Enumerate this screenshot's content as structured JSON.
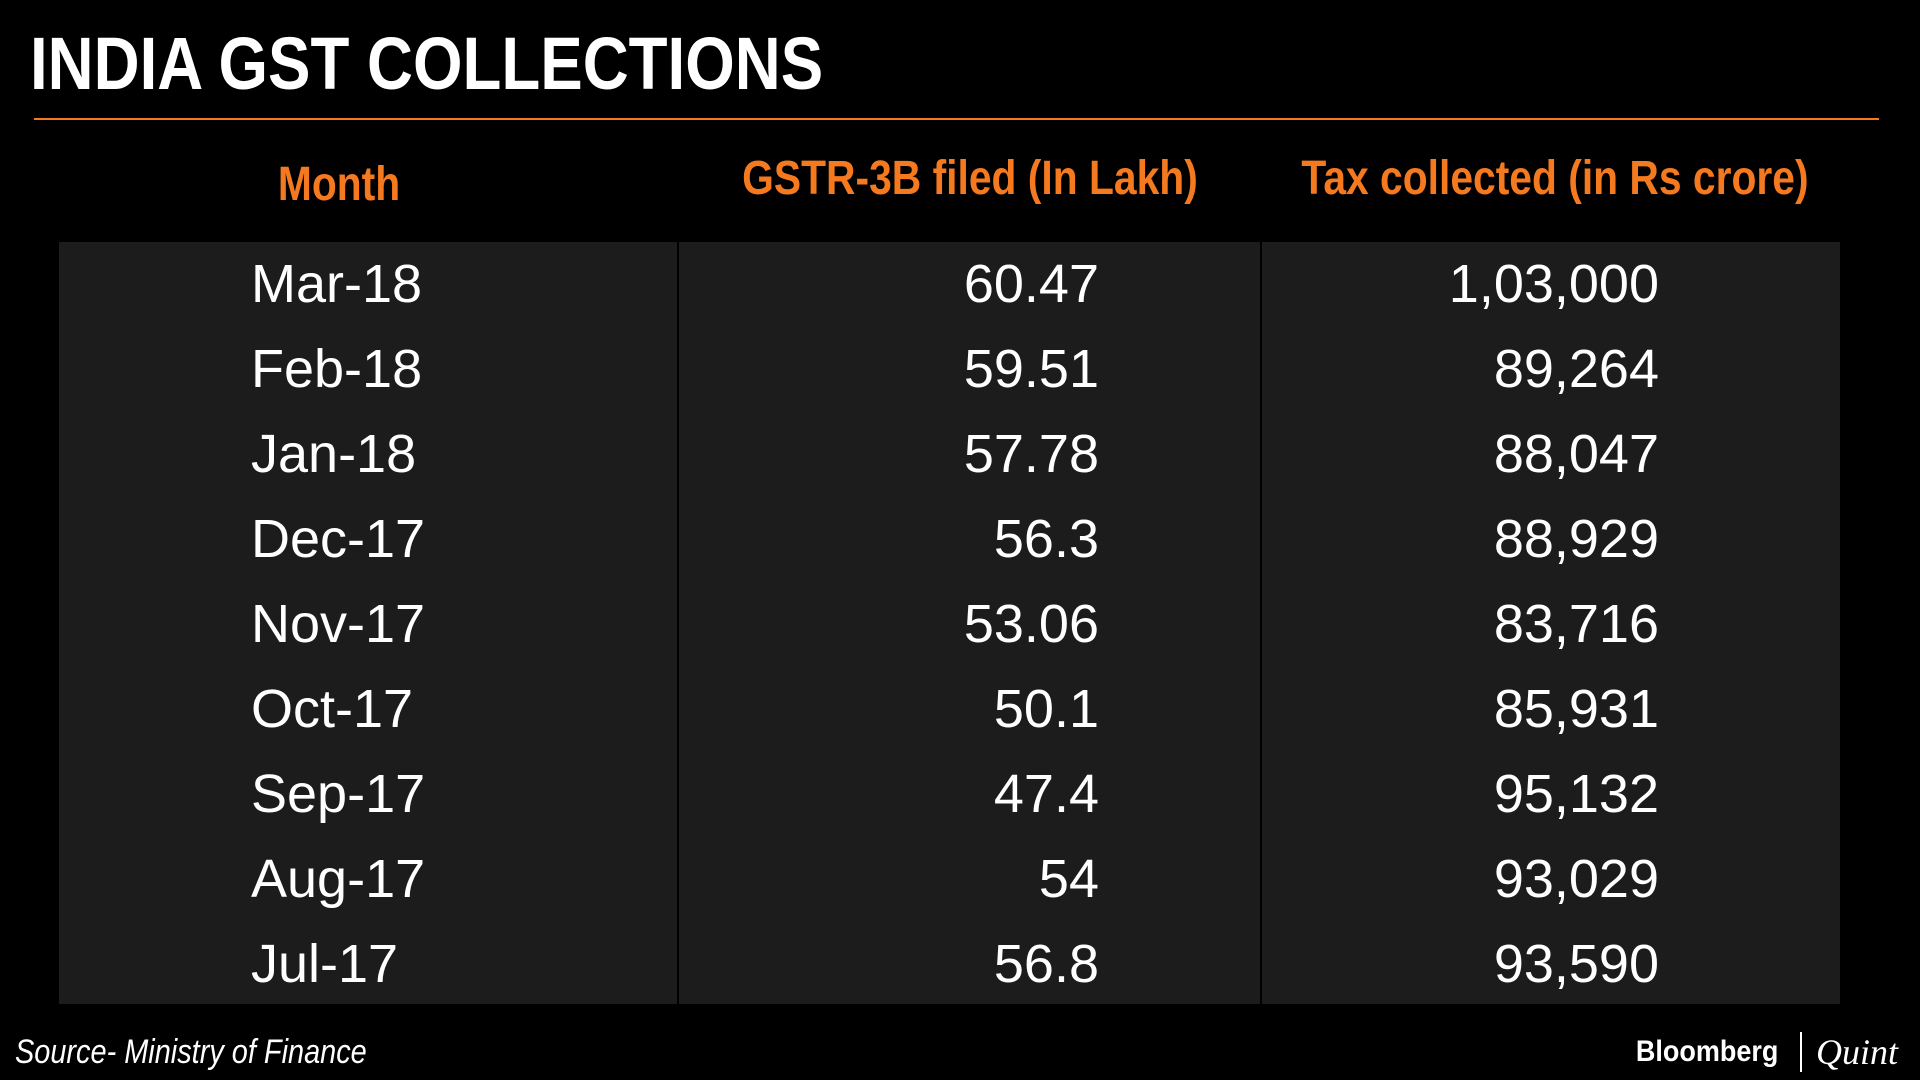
{
  "title": "INDIA GST COLLECTIONS",
  "colors": {
    "accent": "#f4791f",
    "background": "#000000",
    "table_bg": "#1c1c1c",
    "text": "#ffffff"
  },
  "footer": {
    "source": "Source- Ministry of Finance",
    "brand_primary": "Bloomberg",
    "brand_secondary": "Quint"
  },
  "chart_data": {
    "type": "table",
    "title": "INDIA GST COLLECTIONS",
    "columns": [
      "Month",
      "GSTR-3B filed (In Lakh)",
      "Tax collected (in Rs crore)"
    ],
    "rows": [
      [
        "Mar-18",
        "60.47",
        "1,03,000"
      ],
      [
        "Feb-18",
        "59.51",
        "89,264"
      ],
      [
        "Jan-18",
        "57.78",
        "88,047"
      ],
      [
        "Dec-17",
        "56.3",
        "88,929"
      ],
      [
        "Nov-17",
        "53.06",
        "83,716"
      ],
      [
        "Oct-17",
        "50.1",
        "85,931"
      ],
      [
        "Sep-17",
        "47.4",
        "95,132"
      ],
      [
        "Aug-17",
        "54",
        "93,029"
      ],
      [
        "Jul-17",
        "56.8",
        "93,590"
      ]
    ]
  }
}
